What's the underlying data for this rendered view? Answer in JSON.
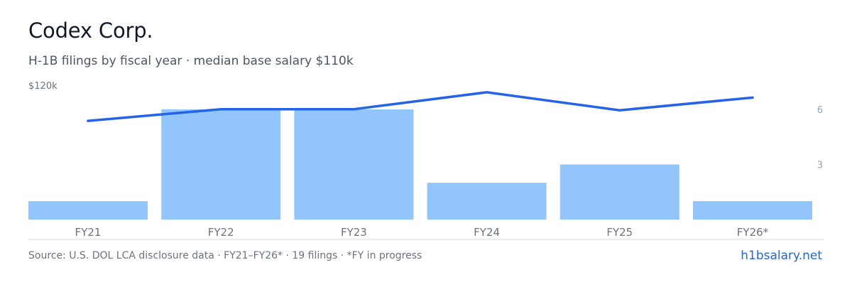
{
  "header": {
    "title": "Codex Corp.",
    "subtitle": "H-1B filings by fiscal year · median base salary $110k"
  },
  "footer": {
    "source": "Source: U.S. DOL LCA disclosure data · FY21–FY26* · 19 filings · *FY in progress",
    "link": "h1bsalary.net"
  },
  "colors": {
    "bar": "#93c5fd",
    "line": "#2563eb",
    "axis_text": "#6b7280",
    "right_axis_text": "#94a3b8",
    "baseline": "#d1d5db"
  },
  "chart_data": {
    "type": "bar",
    "categories": [
      "FY21",
      "FY22",
      "FY23",
      "FY24",
      "FY25",
      "FY26*"
    ],
    "series": [
      {
        "type": "bar",
        "axis": "right",
        "values": [
          1,
          6,
          6,
          2,
          3,
          1
        ]
      },
      {
        "type": "line",
        "axis": "left",
        "values": [
          93000,
          104000,
          104000,
          120000,
          103000,
          115000
        ]
      }
    ],
    "left_axis": {
      "max_label": "$120k",
      "ylim": [
        0,
        140000
      ]
    },
    "right_axis": {
      "ticks": [
        "3",
        "6"
      ],
      "ylim": [
        0,
        6
      ]
    },
    "grid": false,
    "legend": "none"
  }
}
